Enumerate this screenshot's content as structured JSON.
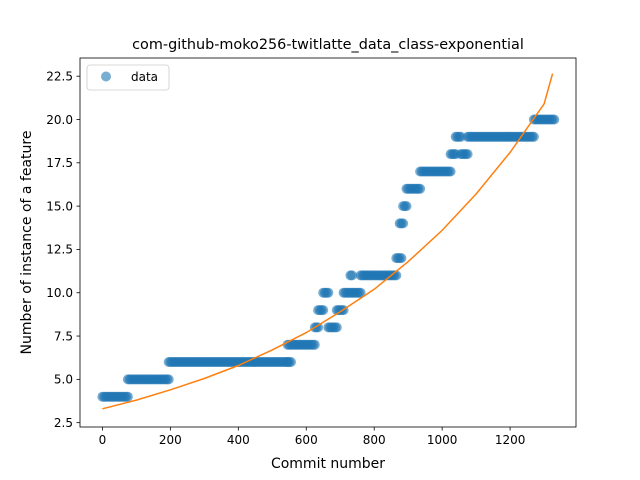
{
  "chart_data": {
    "type": "scatter",
    "title": "com-github-moko256-twitlatte_data_class-exponential",
    "xlabel": "Commit number",
    "ylabel": "Number of instance of a feature",
    "xlim": [
      -66,
      1394
    ],
    "ylim": [
      2.25,
      23.55
    ],
    "xticks": [
      0,
      200,
      400,
      600,
      800,
      1000,
      1200
    ],
    "yticks": [
      2.5,
      5.0,
      7.5,
      10.0,
      12.5,
      15.0,
      17.5,
      20.0,
      22.5
    ],
    "grid": false,
    "legend_position": "top-left",
    "series": [
      {
        "name": "data",
        "kind": "scatter",
        "color": "#1f77b4",
        "segments": [
          {
            "x0": 0,
            "x1": 75,
            "y": 4
          },
          {
            "x0": 75,
            "x1": 195,
            "y": 5
          },
          {
            "x0": 195,
            "x1": 545,
            "y": 6
          },
          {
            "x0": 545,
            "x1": 555,
            "y": 6
          },
          {
            "x0": 545,
            "x1": 625,
            "y": 7
          },
          {
            "x0": 625,
            "x1": 635,
            "y": 8
          },
          {
            "x0": 635,
            "x1": 650,
            "y": 9
          },
          {
            "x0": 650,
            "x1": 665,
            "y": 10
          },
          {
            "x0": 665,
            "x1": 690,
            "y": 8
          },
          {
            "x0": 690,
            "x1": 710,
            "y": 9
          },
          {
            "x0": 710,
            "x1": 730,
            "y": 10
          },
          {
            "x0": 730,
            "x1": 735,
            "y": 11
          },
          {
            "x0": 735,
            "x1": 760,
            "y": 10
          },
          {
            "x0": 760,
            "x1": 865,
            "y": 11
          },
          {
            "x0": 865,
            "x1": 880,
            "y": 12
          },
          {
            "x0": 875,
            "x1": 885,
            "y": 14
          },
          {
            "x0": 885,
            "x1": 895,
            "y": 15
          },
          {
            "x0": 895,
            "x1": 935,
            "y": 16
          },
          {
            "x0": 935,
            "x1": 1025,
            "y": 17
          },
          {
            "x0": 1025,
            "x1": 1040,
            "y": 18
          },
          {
            "x0": 1040,
            "x1": 1055,
            "y": 19
          },
          {
            "x0": 1055,
            "x1": 1075,
            "y": 18
          },
          {
            "x0": 1075,
            "x1": 1270,
            "y": 19
          },
          {
            "x0": 1270,
            "x1": 1330,
            "y": 20
          }
        ]
      },
      {
        "name": "",
        "kind": "line",
        "color": "#ff7f0e",
        "x": [
          0,
          100,
          200,
          300,
          400,
          500,
          600,
          700,
          800,
          900,
          1000,
          1100,
          1200,
          1300,
          1325
        ],
        "y": [
          3.3,
          3.8,
          4.4,
          5.05,
          5.8,
          6.7,
          7.7,
          8.9,
          10.2,
          11.8,
          13.6,
          15.7,
          18.1,
          20.9,
          22.65
        ]
      }
    ]
  }
}
